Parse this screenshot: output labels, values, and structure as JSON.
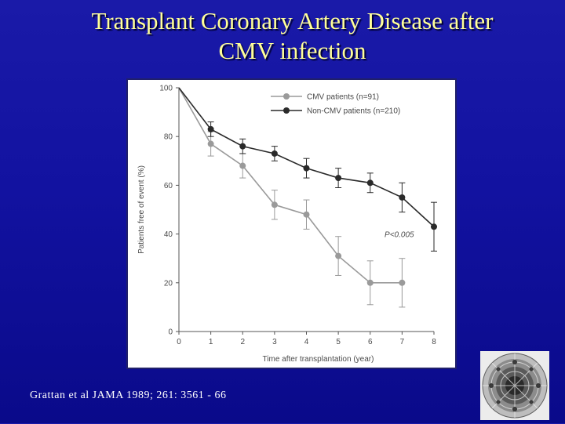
{
  "slide": {
    "title_line1": "Transplant Coronary Artery Disease after",
    "title_line2": "CMV infection",
    "citation": "Grattan et al JAMA 1989; 261: 3561 - 66"
  },
  "colors": {
    "cmv_series": "#9a9a9a",
    "noncmv_series": "#2a2a2a",
    "title_text": "#ffff99",
    "background": "#1414a0"
  },
  "chart_data": {
    "type": "line",
    "title": "",
    "xlabel": "Time after transplantation (year)",
    "ylabel": "Patients free of event (%)",
    "xlim": [
      0,
      8
    ],
    "ylim": [
      0,
      100
    ],
    "x_ticks": [
      0,
      1,
      2,
      3,
      4,
      5,
      6,
      7,
      8
    ],
    "y_ticks": [
      0,
      20,
      40,
      60,
      80,
      100
    ],
    "grid": false,
    "legend_position": "top-right",
    "annotation": "P<0.005",
    "series": [
      {
        "name": "CMV patients",
        "legend_label": "CMV patients (n=91)",
        "x": [
          0,
          1,
          2,
          3,
          4,
          5,
          6,
          7
        ],
        "y": [
          100,
          77,
          68,
          52,
          48,
          31,
          20,
          20
        ],
        "error": [
          0,
          5,
          5,
          6,
          6,
          8,
          9,
          10
        ]
      },
      {
        "name": "Non-CMV patients",
        "legend_label": "Non-CMV patients (n=210)",
        "x": [
          0,
          1,
          2,
          3,
          4,
          5,
          6,
          7,
          8
        ],
        "y": [
          100,
          83,
          76,
          73,
          67,
          63,
          61,
          55,
          43
        ],
        "error": [
          0,
          3,
          3,
          3,
          4,
          4,
          4,
          6,
          10
        ]
      }
    ]
  }
}
